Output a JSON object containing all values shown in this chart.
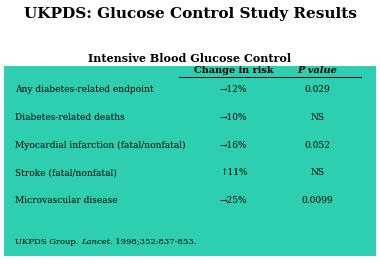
{
  "title": "UKPDS: Glucose Control Study Results",
  "subtitle": "Intensive Blood Glucose Control",
  "bg_color": "#2ecfb0",
  "title_color": "#000000",
  "subtitle_color": "#000000",
  "header_col1": "Change in risk",
  "header_col2": "P value",
  "rows": [
    {
      "label": "Any diabetes-related endpoint",
      "change": "→12%",
      "pvalue": "0.029"
    },
    {
      "label": "Diabetes-related deaths",
      "change": "→10%",
      "pvalue": "NS"
    },
    {
      "label": "Myocardial infarction (fatal/nonfatal)",
      "change": "→16%",
      "pvalue": "0.052"
    },
    {
      "label": "Stroke (fatal/nonfatal)",
      "change": "↑11%",
      "pvalue": "NS"
    },
    {
      "label": "Microvascular disease",
      "change": "→25%",
      "pvalue": "0.0099"
    }
  ],
  "citation_pre": "UKPDS Group. ",
  "citation_italic": "Lancet",
  "citation_post": ". 1998;352:837-853."
}
